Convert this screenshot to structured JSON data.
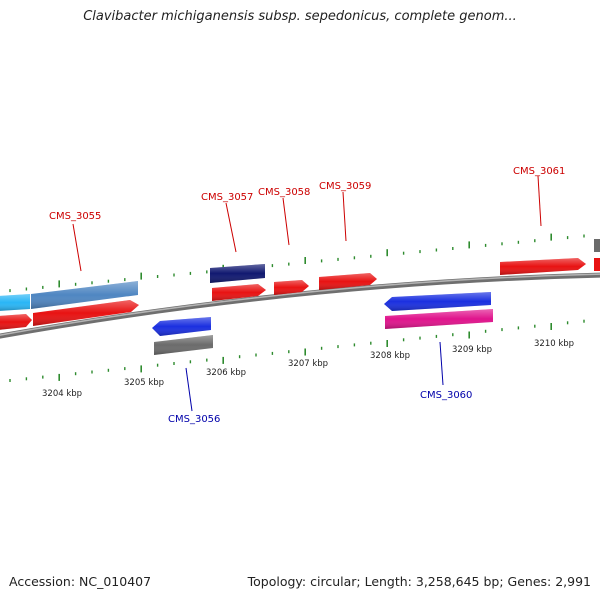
{
  "title": "Clavibacter michiganensis subsp. sepedonicus, complete genom...",
  "footer": {
    "accession": "Accession: NC_010407",
    "summary": "Topology: circular; Length: 3,258,645 bp; Genes: 2,991"
  },
  "colors": {
    "label_forward": "#cc0000",
    "label_reverse": "#0000aa",
    "backbone": "#7a7a7a",
    "tick": "#2e8b2e"
  },
  "axis_labels": [
    "3204 kbp",
    "3205 kbp",
    "3206 kbp",
    "3207 kbp",
    "3208 kbp",
    "3209 kbp",
    "3210 kbp"
  ],
  "genes": [
    {
      "name": "CMS_3055",
      "strand": "forward",
      "color": "#e81212",
      "label": "CMS_3055"
    },
    {
      "name": "CMS_3055-feature",
      "strand": "forward",
      "color": "#4f86c2",
      "label": ""
    },
    {
      "name": "CMS_3055-feature-left",
      "strand": "forward",
      "color": "#29b6f6",
      "label": ""
    },
    {
      "name": "CMS_3055-cds-left",
      "strand": "forward",
      "color": "#e81212",
      "label": ""
    },
    {
      "name": "CMS_3056",
      "strand": "reverse",
      "color": "#1a2fe0",
      "label": "CMS_3056"
    },
    {
      "name": "CMS_3056-feature",
      "strand": "reverse",
      "color": "#6b6b6b",
      "label": ""
    },
    {
      "name": "CMS_3057",
      "strand": "forward",
      "color": "#e81212",
      "label": "CMS_3057"
    },
    {
      "name": "CMS_3057-feature",
      "strand": "forward",
      "color": "#101870",
      "label": ""
    },
    {
      "name": "CMS_3058",
      "strand": "forward",
      "color": "#e81212",
      "label": "CMS_3058"
    },
    {
      "name": "CMS_3059",
      "strand": "forward",
      "color": "#e81212",
      "label": "CMS_3059"
    },
    {
      "name": "CMS_3060",
      "strand": "reverse",
      "color": "#1a2fe0",
      "label": "CMS_3060"
    },
    {
      "name": "CMS_3060-feature",
      "strand": "reverse",
      "color": "#e0138c",
      "label": ""
    },
    {
      "name": "CMS_3061",
      "strand": "forward",
      "color": "#e81212",
      "label": "CMS_3061"
    },
    {
      "name": "CMS_3062-partial",
      "strand": "forward",
      "color": "#e81212",
      "label": ""
    },
    {
      "name": "CMS_3062-feature-partial",
      "strand": "forward",
      "color": "#6b6b6b",
      "label": ""
    }
  ]
}
